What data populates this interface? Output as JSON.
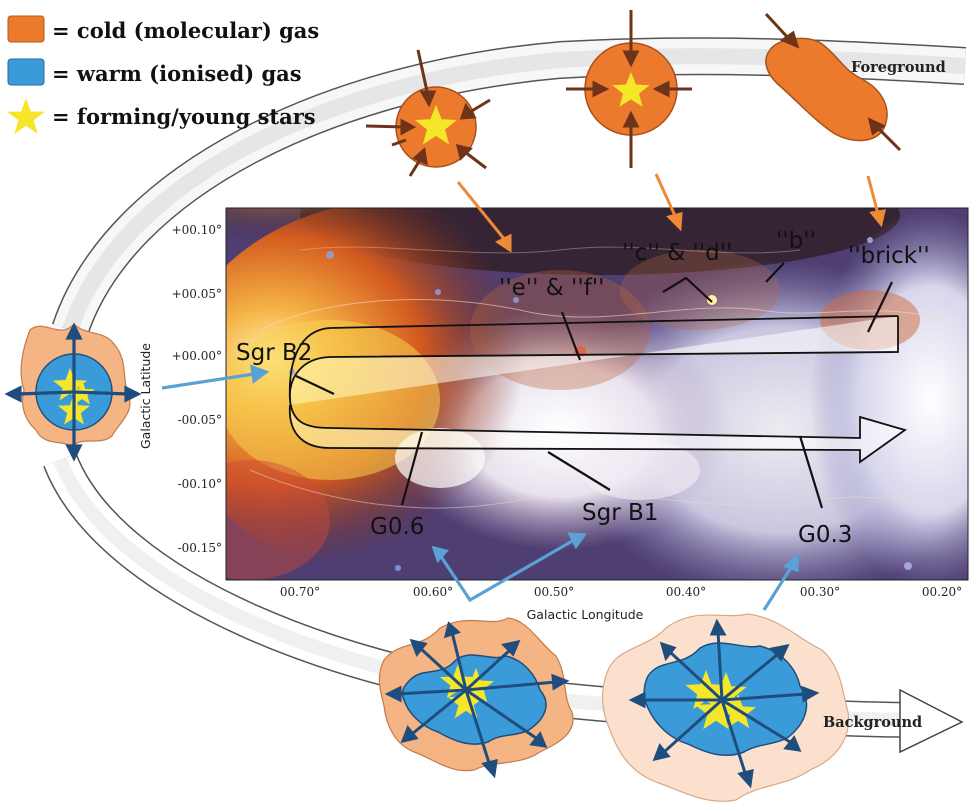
{
  "legend": {
    "cold_gas": "= cold (molecular) gas",
    "warm_gas": "= warm (ionised) gas",
    "stars": "= forming/young stars"
  },
  "orbit": {
    "foreground_label": "Foreground",
    "background_label": "Background"
  },
  "axes": {
    "xlabel": "Galactic Longitude",
    "ylabel": "Galactic Latitude",
    "xticks": [
      "00.70°",
      "00.60°",
      "00.50°",
      "00.40°",
      "00.30°",
      "00.20°"
    ],
    "yticks": [
      "+00.10°",
      "+00.05°",
      "+00.00°",
      "-00.05°",
      "-00.10°",
      "-00.15°"
    ]
  },
  "regions": {
    "sgr_b2": "Sgr B2",
    "e_f": "''e'' & ''f''",
    "c_d": "''c'' & ''d''",
    "b": "''b''",
    "brick": "''brick''",
    "g06": "G0.6",
    "sgr_b1": "Sgr B1",
    "g03": "G0.3"
  },
  "colors": {
    "cold_gas": "#ec7a2d",
    "warm_gas": "#3b9bd8",
    "stars": "#f6e62a",
    "arrow_brown": "#6e3318",
    "arrow_orange": "#ee8a36",
    "arrow_blue": "#5aa2d6",
    "arrow_darkblue": "#1f4d7d"
  }
}
